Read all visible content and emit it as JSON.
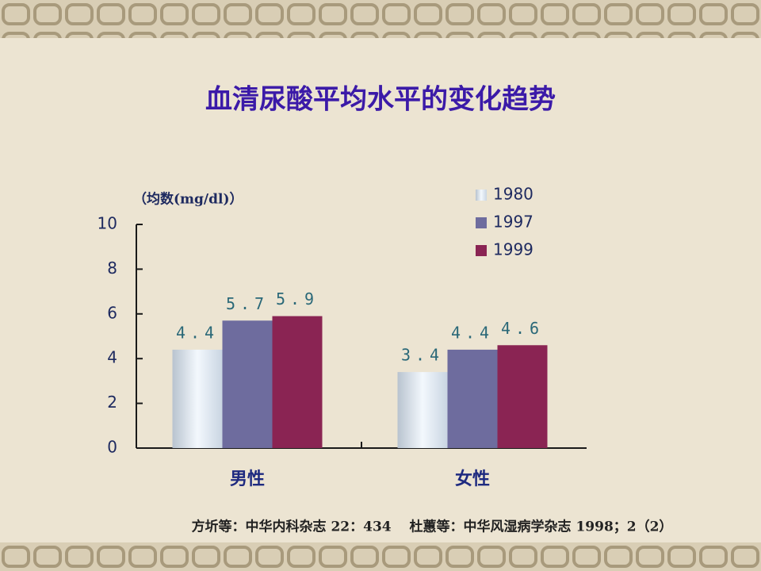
{
  "chart_data": {
    "type": "bar",
    "title": "血清尿酸平均水平的变化趋势",
    "y_label": "（均数(mg/dl)）",
    "categories": [
      "男性",
      "女性"
    ],
    "series": [
      {
        "name": "1980",
        "color": "#dfe9f3",
        "values": [
          4.4,
          3.4
        ]
      },
      {
        "name": "1997",
        "color": "#6e6c9e",
        "values": [
          5.7,
          4.4
        ]
      },
      {
        "name": "1999",
        "color": "#8a2453",
        "values": [
          5.9,
          4.6
        ]
      }
    ],
    "ylim": [
      0,
      10
    ],
    "yticks": [
      0,
      2,
      4,
      6,
      8,
      10
    ],
    "footnote": "方圻等：中华内科杂志 22：434　 杜蕙等：中华风湿病学杂志 1998；2（2）"
  }
}
